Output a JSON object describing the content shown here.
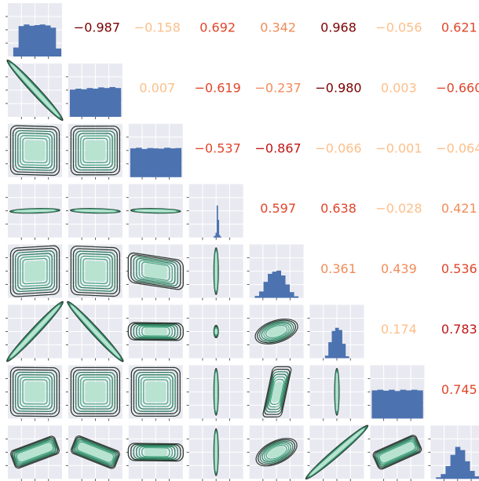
{
  "chart_data": {
    "type": "pairplot",
    "n_vars": 8,
    "diagonal": "histogram",
    "lower_triangle": "kde-contour",
    "upper_triangle": "correlation-text",
    "colors": {
      "panel_bg": "#e9eaf1",
      "grid": "#ffffff",
      "hist": "#4c72b0",
      "contour_outer": "#2f3b34",
      "contour_mid": "#2f7f5f",
      "contour_fill": "#4aa783",
      "contour_light": "#b7e3d0",
      "corr_scale": [
        "#fdbf8a",
        "#f08c5a",
        "#e0452a",
        "#c01515",
        "#7a0000"
      ]
    },
    "correlations": [
      {
        "row": 1,
        "col": 2,
        "text": "−0.987",
        "value": -0.987
      },
      {
        "row": 1,
        "col": 3,
        "text": "−0.158",
        "value": -0.158
      },
      {
        "row": 1,
        "col": 4,
        "text": "0.692",
        "value": 0.692
      },
      {
        "row": 1,
        "col": 5,
        "text": "0.342",
        "value": 0.342
      },
      {
        "row": 1,
        "col": 6,
        "text": "0.968",
        "value": 0.968
      },
      {
        "row": 1,
        "col": 7,
        "text": "−0.056",
        "value": -0.056
      },
      {
        "row": 1,
        "col": 8,
        "text": "0.621",
        "value": 0.621
      },
      {
        "row": 2,
        "col": 3,
        "text": "0.007",
        "value": 0.007
      },
      {
        "row": 2,
        "col": 4,
        "text": "−0.619",
        "value": -0.619
      },
      {
        "row": 2,
        "col": 5,
        "text": "−0.237",
        "value": -0.237
      },
      {
        "row": 2,
        "col": 6,
        "text": "−0.980",
        "value": -0.98
      },
      {
        "row": 2,
        "col": 7,
        "text": "0.003",
        "value": 0.003
      },
      {
        "row": 2,
        "col": 8,
        "text": "−0.660",
        "value": -0.66
      },
      {
        "row": 3,
        "col": 4,
        "text": "−0.537",
        "value": -0.537
      },
      {
        "row": 3,
        "col": 5,
        "text": "−0.867",
        "value": -0.867
      },
      {
        "row": 3,
        "col": 6,
        "text": "−0.066",
        "value": -0.066
      },
      {
        "row": 3,
        "col": 7,
        "text": "−0.001",
        "value": -0.001
      },
      {
        "row": 3,
        "col": 8,
        "text": "−0.064",
        "value": -0.064
      },
      {
        "row": 4,
        "col": 5,
        "text": "0.597",
        "value": 0.597
      },
      {
        "row": 4,
        "col": 6,
        "text": "0.638",
        "value": 0.638
      },
      {
        "row": 4,
        "col": 7,
        "text": "−0.028",
        "value": -0.028
      },
      {
        "row": 4,
        "col": 8,
        "text": "0.421",
        "value": 0.421
      },
      {
        "row": 5,
        "col": 6,
        "text": "0.361",
        "value": 0.361
      },
      {
        "row": 5,
        "col": 7,
        "text": "0.439",
        "value": 0.439
      },
      {
        "row": 5,
        "col": 8,
        "text": "0.536",
        "value": 0.536
      },
      {
        "row": 6,
        "col": 7,
        "text": "0.174",
        "value": 0.174
      },
      {
        "row": 6,
        "col": 8,
        "text": "0.783",
        "value": 0.783
      },
      {
        "row": 7,
        "col": 8,
        "text": "0.745",
        "value": 0.745
      }
    ],
    "histograms": [
      {
        "var": 1,
        "shape": "uniform",
        "counts": [
          0.28,
          0.95,
          1.0,
          0.96,
          0.98,
          1.0,
          0.97,
          0.9,
          0.25
        ]
      },
      {
        "var": 2,
        "shape": "uniform",
        "counts": [
          0.85,
          0.88,
          0.86,
          0.9,
          0.88,
          0.92,
          0.9,
          0.93,
          0.9
        ]
      },
      {
        "var": 3,
        "shape": "uniform",
        "counts": [
          0.9,
          0.92,
          0.88,
          0.91,
          0.9,
          0.89,
          0.92,
          0.9,
          0.91
        ]
      },
      {
        "var": 4,
        "shape": "spike",
        "counts": [
          0.03,
          0.06,
          0.15,
          1.0,
          0.55,
          0.08,
          0.03
        ]
      },
      {
        "var": 5,
        "shape": "normal",
        "counts": [
          0.06,
          0.2,
          0.5,
          0.75,
          0.82,
          0.85,
          0.7,
          0.42,
          0.18,
          0.05
        ]
      },
      {
        "var": 6,
        "shape": "narrow-normal",
        "counts": [
          0.08,
          0.5,
          0.85,
          0.95,
          0.88,
          0.45,
          0.06
        ]
      },
      {
        "var": 7,
        "shape": "uniform",
        "counts": [
          0.88,
          0.9,
          0.87,
          0.9,
          0.86,
          0.9,
          0.88,
          0.9,
          0.88
        ]
      },
      {
        "var": 8,
        "shape": "normal",
        "counts": [
          0.05,
          0.15,
          0.4,
          0.75,
          1.0,
          0.9,
          0.55,
          0.25,
          0.08
        ]
      }
    ],
    "kde_panels": [
      {
        "row": 2,
        "col": 1,
        "kind": "line",
        "slope": -0.987
      },
      {
        "row": 3,
        "col": 1,
        "kind": "square",
        "slope": -0.158
      },
      {
        "row": 3,
        "col": 2,
        "kind": "square",
        "slope": 0.007
      },
      {
        "row": 4,
        "col": 1,
        "kind": "hline",
        "slope": 0.692
      },
      {
        "row": 4,
        "col": 2,
        "kind": "hline",
        "slope": -0.619
      },
      {
        "row": 4,
        "col": 3,
        "kind": "hline",
        "slope": -0.537
      },
      {
        "row": 5,
        "col": 1,
        "kind": "square",
        "slope": 0.342
      },
      {
        "row": 5,
        "col": 2,
        "kind": "square",
        "slope": -0.237
      },
      {
        "row": 5,
        "col": 3,
        "kind": "rect",
        "slope": -0.867
      },
      {
        "row": 5,
        "col": 4,
        "kind": "vline",
        "slope": 0.597
      },
      {
        "row": 6,
        "col": 1,
        "kind": "line",
        "slope": 0.968
      },
      {
        "row": 6,
        "col": 2,
        "kind": "line",
        "slope": -0.98
      },
      {
        "row": 6,
        "col": 3,
        "kind": "rect",
        "slope": -0.066
      },
      {
        "row": 6,
        "col": 4,
        "kind": "dot",
        "slope": 0.638
      },
      {
        "row": 6,
        "col": 5,
        "kind": "blob",
        "slope": 0.361
      },
      {
        "row": 7,
        "col": 1,
        "kind": "square",
        "slope": -0.056
      },
      {
        "row": 7,
        "col": 2,
        "kind": "square",
        "slope": 0.003
      },
      {
        "row": 7,
        "col": 3,
        "kind": "square",
        "slope": -0.001
      },
      {
        "row": 7,
        "col": 4,
        "kind": "vline",
        "slope": -0.028
      },
      {
        "row": 7,
        "col": 5,
        "kind": "para",
        "slope": 0.439
      },
      {
        "row": 7,
        "col": 6,
        "kind": "vline",
        "slope": 0.174
      },
      {
        "row": 8,
        "col": 1,
        "kind": "band",
        "slope": 0.621
      },
      {
        "row": 8,
        "col": 2,
        "kind": "band",
        "slope": -0.66
      },
      {
        "row": 8,
        "col": 3,
        "kind": "rect",
        "slope": -0.064
      },
      {
        "row": 8,
        "col": 4,
        "kind": "vline",
        "slope": 0.421
      },
      {
        "row": 8,
        "col": 5,
        "kind": "blob",
        "slope": 0.536
      },
      {
        "row": 8,
        "col": 6,
        "kind": "line",
        "slope": 0.783
      },
      {
        "row": 8,
        "col": 7,
        "kind": "band",
        "slope": 0.745
      }
    ]
  }
}
